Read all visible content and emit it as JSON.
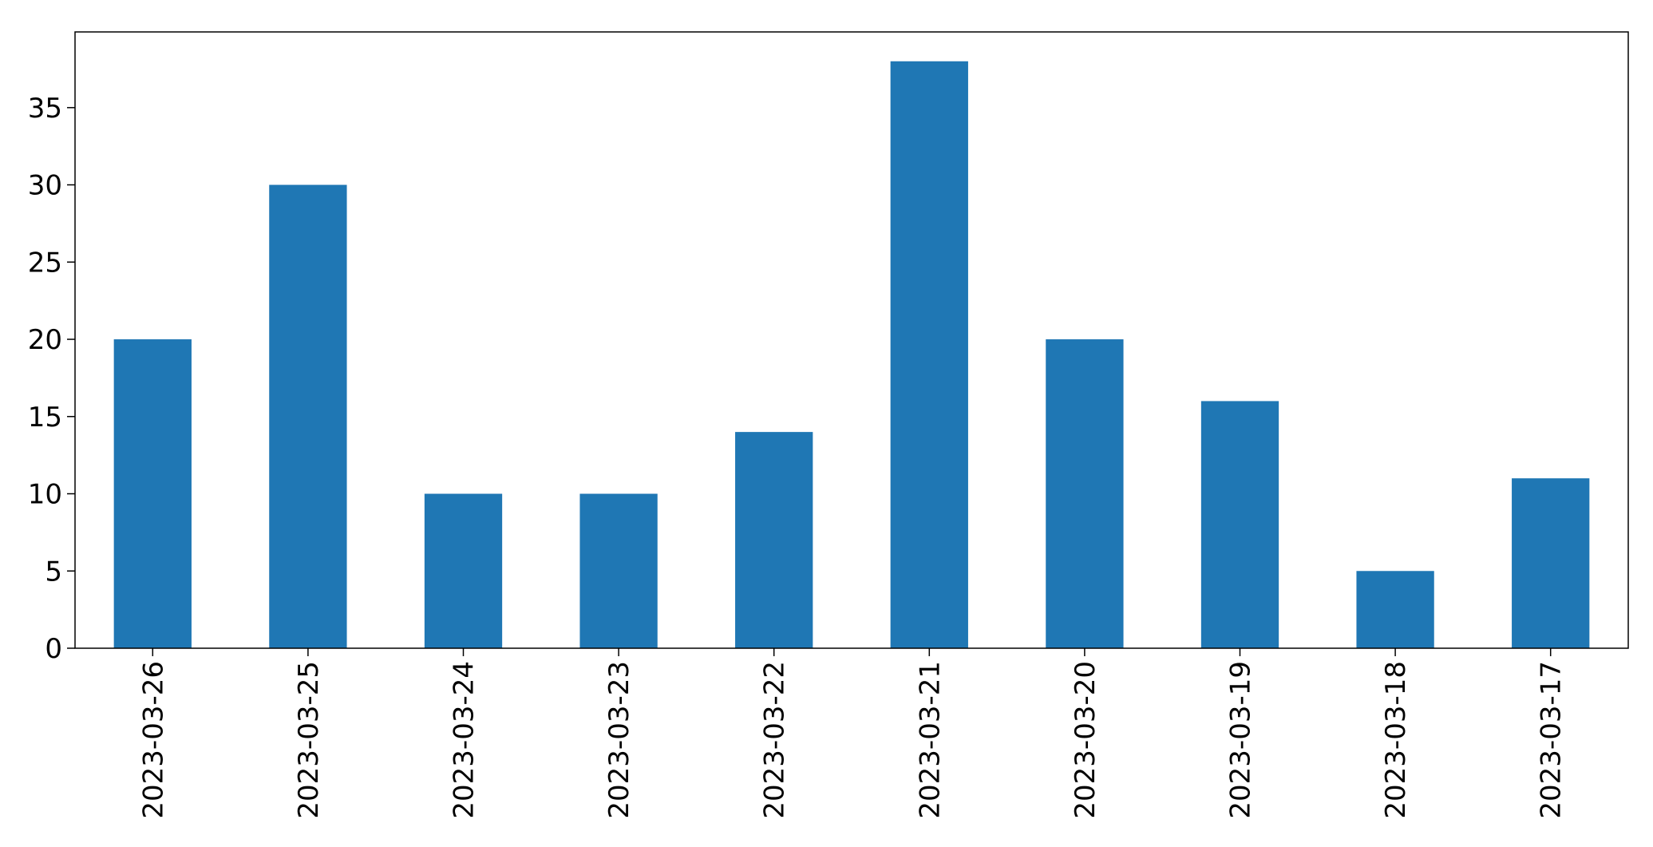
{
  "chart_data": {
    "type": "bar",
    "categories": [
      "2023-03-26",
      "2023-03-25",
      "2023-03-24",
      "2023-03-23",
      "2023-03-22",
      "2023-03-21",
      "2023-03-20",
      "2023-03-19",
      "2023-03-18",
      "2023-03-17"
    ],
    "values": [
      20,
      30,
      10,
      10,
      14,
      38,
      20,
      16,
      5,
      11
    ],
    "title": "",
    "xlabel": "",
    "ylabel": "",
    "ylim": [
      0,
      39.9
    ],
    "yticks": [
      0,
      5,
      10,
      15,
      20,
      25,
      30,
      35
    ],
    "grid": false,
    "legend": "none",
    "bar_color": "#1f77b4"
  }
}
